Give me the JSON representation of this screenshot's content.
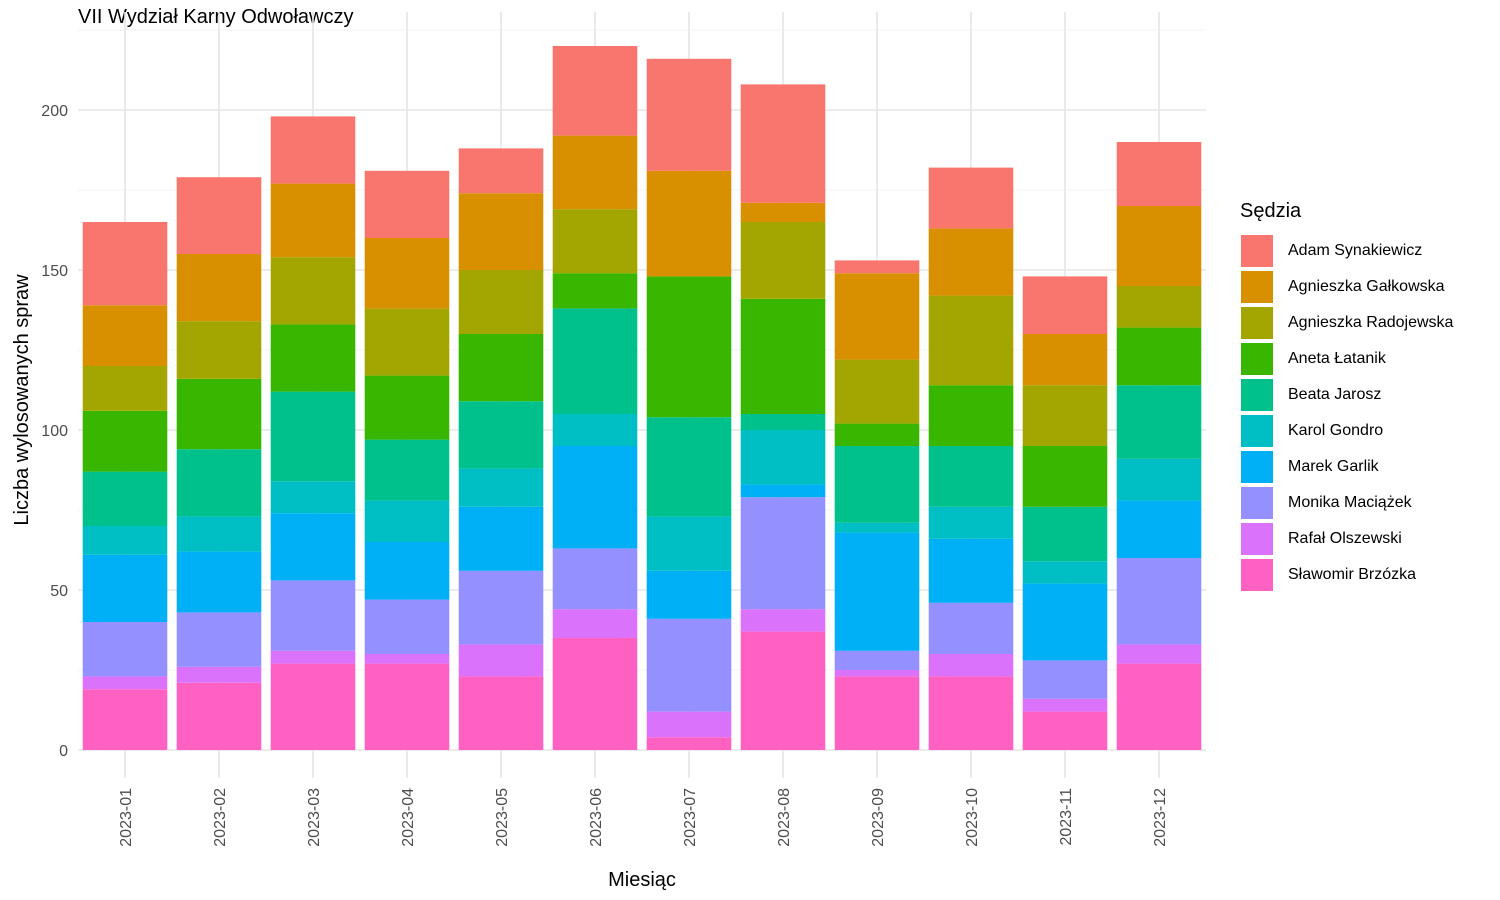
{
  "chart_data": {
    "type": "bar",
    "stacked": true,
    "title": "VII Wydział Karny Odwoławczy",
    "xlabel": "Miesiąc",
    "ylabel": "Liczba wylosowanych spraw",
    "ylim": [
      0,
      230
    ],
    "yticks": [
      0,
      50,
      100,
      150,
      200
    ],
    "grid": true,
    "legend_title": "Sędzia",
    "legend_position": "right",
    "categories": [
      "2023-01",
      "2023-02",
      "2023-03",
      "2023-04",
      "2023-05",
      "2023-06",
      "2023-07",
      "2023-08",
      "2023-09",
      "2023-10",
      "2023-11",
      "2023-12"
    ],
    "series": [
      {
        "name": "Sławomir Brzózka",
        "color": "#FF61C3",
        "values": [
          19,
          21,
          27,
          27,
          23,
          35,
          4,
          37,
          23,
          23,
          12,
          27
        ]
      },
      {
        "name": "Rafał Olszewski",
        "color": "#DB72FB",
        "values": [
          4,
          5,
          4,
          3,
          10,
          9,
          8,
          7,
          2,
          7,
          4,
          6
        ]
      },
      {
        "name": "Monika Maciążek",
        "color": "#9590FF",
        "values": [
          17,
          17,
          22,
          17,
          23,
          19,
          29,
          35,
          6,
          16,
          12,
          27
        ]
      },
      {
        "name": "Marek Garlik",
        "color": "#00B0F6",
        "values": [
          21,
          19,
          21,
          18,
          20,
          32,
          15,
          4,
          37,
          20,
          24,
          18
        ]
      },
      {
        "name": "Karol Gondro",
        "color": "#00BFC4",
        "values": [
          9,
          11,
          10,
          13,
          12,
          10,
          17,
          17,
          3,
          10,
          7,
          13
        ]
      },
      {
        "name": "Beata Jarosz",
        "color": "#00C08B",
        "values": [
          17,
          21,
          28,
          19,
          21,
          33,
          31,
          5,
          24,
          19,
          17,
          23
        ]
      },
      {
        "name": "Aneta Łatanik",
        "color": "#39B600",
        "values": [
          19,
          22,
          21,
          20,
          21,
          11,
          44,
          36,
          7,
          19,
          19,
          18
        ]
      },
      {
        "name": "Agnieszka Radojewska",
        "color": "#A3A500",
        "values": [
          14,
          18,
          21,
          21,
          20,
          20,
          0,
          24,
          20,
          28,
          19,
          13
        ]
      },
      {
        "name": "Agnieszka Gałkowska",
        "color": "#D89000",
        "values": [
          19,
          21,
          23,
          22,
          24,
          23,
          33,
          6,
          27,
          21,
          16,
          25
        ]
      },
      {
        "name": "Adam Synakiewicz",
        "color": "#F8766D",
        "values": [
          26,
          24,
          21,
          21,
          14,
          28,
          35,
          37,
          4,
          19,
          18,
          20
        ]
      }
    ],
    "legend_order": [
      "Adam Synakiewicz",
      "Agnieszka Gałkowska",
      "Agnieszka Radojewska",
      "Aneta Łatanik",
      "Beata Jarosz",
      "Karol Gondro",
      "Marek Garlik",
      "Monika Maciążek",
      "Rafał Olszewski",
      "Sławomir Brzózka"
    ]
  }
}
